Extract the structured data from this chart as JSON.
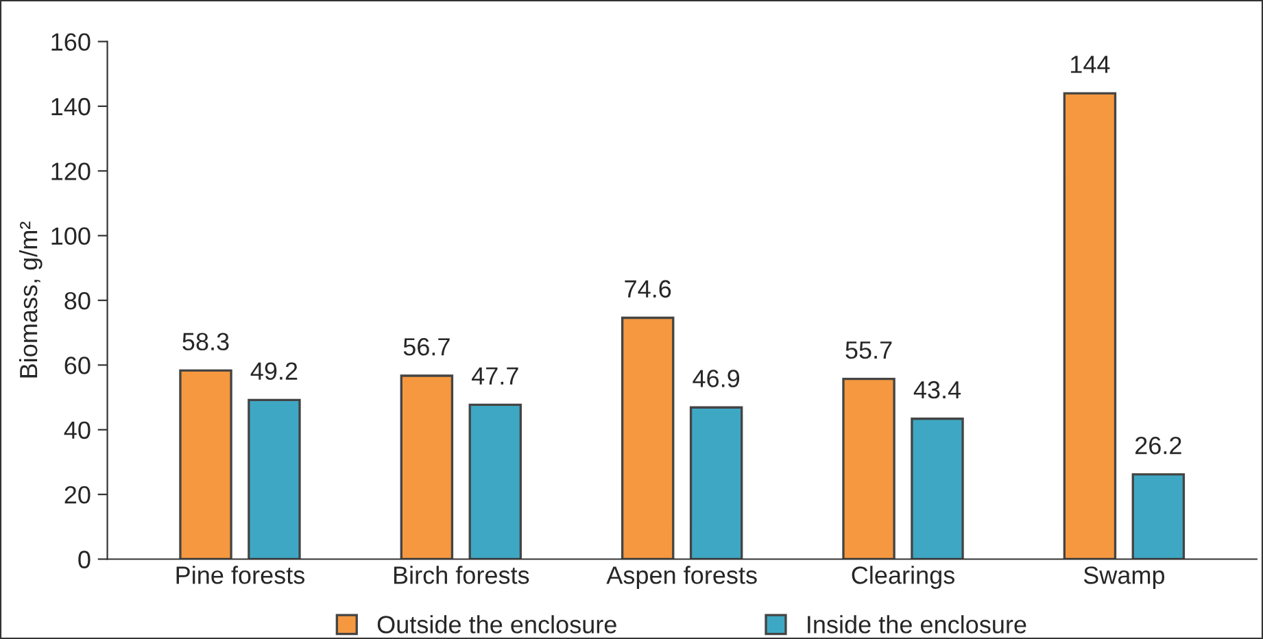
{
  "chart_data": {
    "type": "bar",
    "ylabel": "Biomass, g/m²",
    "categories": [
      "Pine forests",
      "Birch forests",
      "Aspen forests",
      "Clearings",
      "Swamp"
    ],
    "series": [
      {
        "name": "Outside the enclosure",
        "color": "#f5983f",
        "values": [
          58.3,
          56.7,
          74.6,
          55.7,
          144
        ]
      },
      {
        "name": "Inside the enclosure",
        "color": "#3ea8c4",
        "values": [
          49.2,
          47.7,
          46.9,
          43.4,
          26.2
        ]
      }
    ],
    "ylim": [
      0,
      160
    ],
    "yticks": [
      0,
      20,
      40,
      60,
      80,
      100,
      120,
      140,
      160
    ],
    "data_labels": true,
    "legend": "bottom",
    "grid": false
  }
}
